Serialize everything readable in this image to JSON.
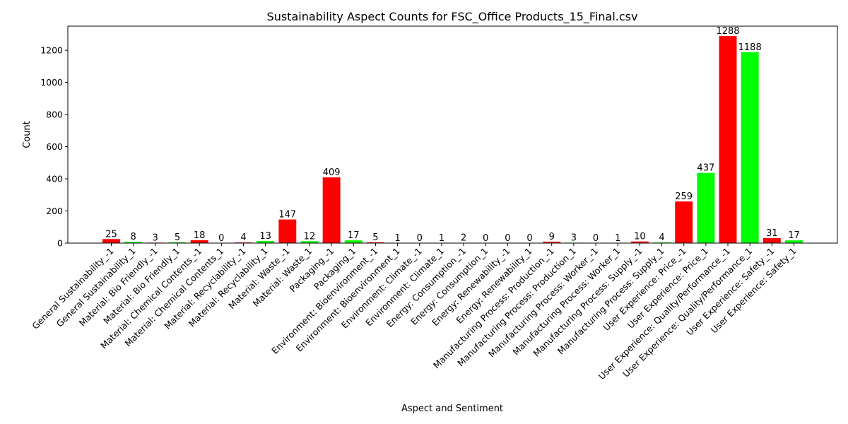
{
  "chart_data": {
    "type": "bar",
    "title": "Sustainability Aspect Counts for FSC_Office Products_15_Final.csv",
    "xlabel": "Aspect and Sentiment",
    "ylabel": "Count",
    "ylim": [
      0,
      1350
    ],
    "yticks": [
      0,
      200,
      400,
      600,
      800,
      1000,
      1200
    ],
    "grid": false,
    "legend": "none",
    "colors": {
      "negative": "#ff0000",
      "positive": "#00ff00"
    },
    "categories": [
      "General Sustainability_-1",
      "General Sustainability_1",
      "Material: Bio Friendly_-1",
      "Material: Bio Friendly_1",
      "Material: Chemical Contents_-1",
      "Material: Chemical Contents_1",
      "Material: Recyclability_-1",
      "Material: Recyclability_1",
      "Material: Waste_-1",
      "Material: Waste_1",
      "Packaging_-1",
      "Packaging_1",
      "Environment: Bioenvironment_-1",
      "Environment: Bioenvironment_1",
      "Environment: Climate_-1",
      "Environment: Climate_1",
      "Energy: Consumption_-1",
      "Energy: Consumption_1",
      "Energy: Renewability_-1",
      "Energy: Renewability_1",
      "Manufacturing Process: Production_-1",
      "Manufacturing Process: Production_1",
      "Manufacturing Process: Worker_-1",
      "Manufacturing Process: Worker_1",
      "Manufacturing Process: Supply_-1",
      "Manufacturing Process: Supply_1",
      "User Experience: Price_-1",
      "User Experience: Price_1",
      "User Experience: Quality/Performance_-1",
      "User Experience: Quality/Performance_1",
      "User Experience: Safety_-1",
      "User Experience: Safety_1"
    ],
    "values": [
      25,
      8,
      3,
      5,
      18,
      0,
      4,
      13,
      147,
      12,
      409,
      17,
      5,
      1,
      0,
      1,
      2,
      0,
      0,
      0,
      9,
      3,
      0,
      1,
      10,
      4,
      259,
      437,
      1288,
      1188,
      31,
      17
    ]
  }
}
